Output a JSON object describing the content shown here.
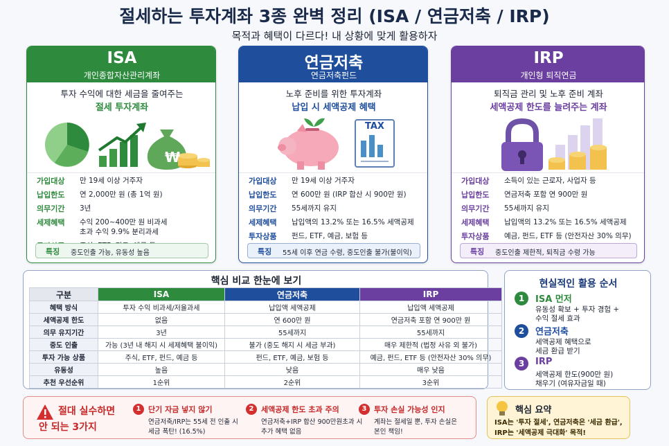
{
  "header": {
    "title": "절세하는 투자계좌 3종 완벽 정리 (ISA / 연금저축 / IRP)",
    "subtitle": "목적과 혜택이 다르다! 내 상황에 맞게 활용하자"
  },
  "cards": [
    {
      "name": "ISA",
      "subname": "개인종합자산관리계좌",
      "color": "#2e8b3e",
      "intro": [
        "투자 수익에 대한 세금을 줄여주는",
        "절세 투자계좌"
      ],
      "illustration_text": "₩",
      "rows": [
        {
          "label": "가입대상",
          "value": [
            "만 19세 이상 거주자"
          ]
        },
        {
          "label": "납입한도",
          "value": [
            "연 2,000만 원 (총 1억 원)"
          ]
        },
        {
          "label": "의무기간",
          "value": [
            "3년"
          ]
        },
        {
          "label": "세제혜택",
          "value": [
            "수익 200~400만 원 비과세",
            "초과 수익 9.9% 분리과세"
          ]
        },
        {
          "label": "투자상품",
          "value": [
            "주식, ETF, 펀드, 예금 등"
          ]
        }
      ],
      "feature_label": "특징",
      "feature_text": "중도인출 가능, 유동성 높음"
    },
    {
      "name": "연금저축",
      "subname": "연금저축펀드",
      "color": "#1f4e9c",
      "intro": [
        "노후 준비를 위한 투자계좌",
        "납입 시 세액공제 혜택"
      ],
      "illustration_text": "TAX",
      "rows": [
        {
          "label": "가입대상",
          "value": [
            "만 19세 이상 거주자"
          ]
        },
        {
          "label": "납입한도",
          "value": [
            "연 600만 원 (IRP 합산 시 900만 원)"
          ]
        },
        {
          "label": "의무기간",
          "value": [
            "55세까지 유지"
          ]
        },
        {
          "label": "세제혜택",
          "value": [
            "납입액의 13.2% 또는 16.5% 세액공제"
          ]
        },
        {
          "label": "투자상품",
          "value": [
            "펀드, ETF, 예금, 보험 등"
          ]
        }
      ],
      "feature_label": "특징",
      "feature_text": "55세 이후 연금 수령, 중도인출 불가(불이익)"
    },
    {
      "name": "IRP",
      "subname": "개인형 퇴직연금",
      "color": "#6a3fa0",
      "intro": [
        "퇴직금 관리 및 노후 준비 계좌",
        "세액공제 한도를 늘려주는 계좌"
      ],
      "rows": [
        {
          "label": "가입대상",
          "value": [
            "소득이 있는 근로자, 사업자 등"
          ]
        },
        {
          "label": "납입한도",
          "value": [
            "연금저축 포함 연 900만 원"
          ]
        },
        {
          "label": "의무기간",
          "value": [
            "55세까지 유지"
          ]
        },
        {
          "label": "세제혜택",
          "value": [
            "납입액의 13.2% 또는 16.5% 세액공제"
          ]
        },
        {
          "label": "투자상품",
          "value": [
            "예금, 펀드, ETF 등 (안전자산 30% 의무)"
          ]
        }
      ],
      "feature_label": "특징",
      "feature_text": "중도인출 제한적, 퇴직금 수령 가능"
    }
  ],
  "comparison": {
    "title": "핵심 비교 한눈에 보기",
    "header": [
      "구분",
      "ISA",
      "연금저축",
      "IRP"
    ],
    "rows": [
      [
        "혜택 방식",
        "투자 수익 비과세/저율과세",
        "납입액 세액공제",
        "납입액 세액공제"
      ],
      [
        "세액공제 한도",
        "없음",
        "연 600만 원",
        "연금저축 포함 연 900만 원"
      ],
      [
        "의무 유지기간",
        "3년",
        "55세까지",
        "55세까지"
      ],
      [
        "중도 인출",
        "가능 (3년 내 해지 시 세제혜택 불이익)",
        "불가 (중도 해지 시 세금 부과)",
        "매우 제한적 (법정 사유 외 불가)"
      ],
      [
        "투자 가능 상품",
        "주식, ETF, 펀드, 예금 등",
        "펀드, ETF, 예금, 보험 등",
        "예금, 펀드, ETF 등 (안전자산 30% 의무)"
      ],
      [
        "유동성",
        "높음",
        "낮음",
        "매우 낮음"
      ],
      [
        "추천 우선순위",
        "1순위",
        "2순위",
        "3순위"
      ]
    ]
  },
  "order": {
    "title": "현실적인 활용 순서",
    "steps": [
      {
        "number": "1",
        "title": "ISA 먼저",
        "lines": [
          "유동성 확보 + 투자 경험 +",
          "수익 절세 효과"
        ]
      },
      {
        "number": "2",
        "title": "연금저축",
        "lines": [
          "세액공제 혜택으로",
          "세금 환급 받기"
        ]
      },
      {
        "number": "3",
        "title": "IRP",
        "lines": [
          "세액공제 한도(900만 원)",
          "채우기 (여유자금일 때)"
        ]
      }
    ]
  },
  "mistakes": {
    "title": [
      "절대 실수하면",
      "안 되는 3가지"
    ],
    "items": [
      {
        "number": "1",
        "title": "단기 자금 넣지 않기",
        "lines": [
          "연금저축/IRP는 55세 전 인출 시",
          "세금 폭탄! (16.5%)"
        ]
      },
      {
        "number": "2",
        "title": "세액공제 한도 초과 주의",
        "lines": [
          "연금저축+IRP 합산 900만원초과 시",
          "추가 혜택 없음"
        ]
      },
      {
        "number": "3",
        "title": "투자 손실 가능성 인지",
        "lines": [
          "계좌는 절세일 뿐, 투자 손실은",
          "본인 책임!"
        ]
      }
    ]
  },
  "summary": {
    "title": "핵심 요약",
    "lines": [
      "ISA는 '투자 절세', 연금저축은 '세금 환급',",
      "IRP는 '세액공제 극대화' 목적!"
    ]
  }
}
